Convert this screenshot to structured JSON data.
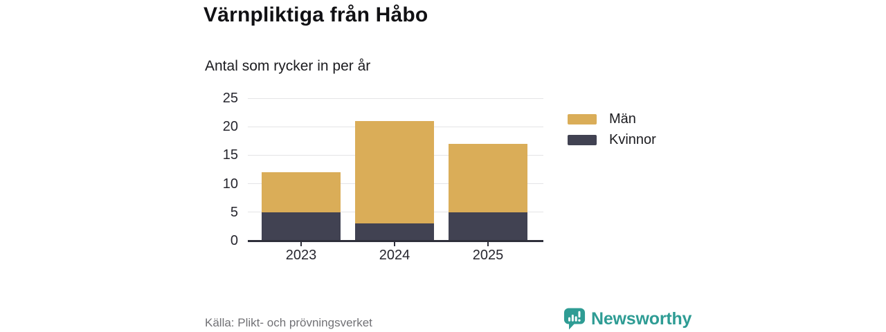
{
  "header": {
    "title": "Värnpliktiga från Håbo",
    "subtitle": "Antal som rycker in per år"
  },
  "chart_data": {
    "type": "bar",
    "stacked": true,
    "title": "Värnpliktiga från Håbo",
    "subtitle": "Antal som rycker in per år",
    "categories": [
      "2023",
      "2024",
      "2025"
    ],
    "series": [
      {
        "name": "Kvinnor",
        "values": [
          5,
          3,
          5
        ],
        "color": "#414252"
      },
      {
        "name": "Män",
        "values": [
          7,
          18,
          12
        ],
        "color": "#DAAD58"
      }
    ],
    "totals": [
      12,
      21,
      17
    ],
    "xlabel": "",
    "ylabel": "",
    "ylim": [
      0,
      25
    ],
    "yticks": [
      0,
      5,
      10,
      15,
      20,
      25
    ],
    "grid": "horizontal",
    "legend_position": "right",
    "legend_order": [
      "Män",
      "Kvinnor"
    ]
  },
  "footer": {
    "source": "Källa: Plikt- och prövningsverket",
    "brand": "Newsworthy"
  },
  "colors": {
    "men": "#DAAD58",
    "women": "#414252",
    "brand_teal": "#2E9C94",
    "grid": "#E4E4E6",
    "axis": "#2E2F3A",
    "text": "#1B1B1F",
    "muted_text": "#717175"
  }
}
